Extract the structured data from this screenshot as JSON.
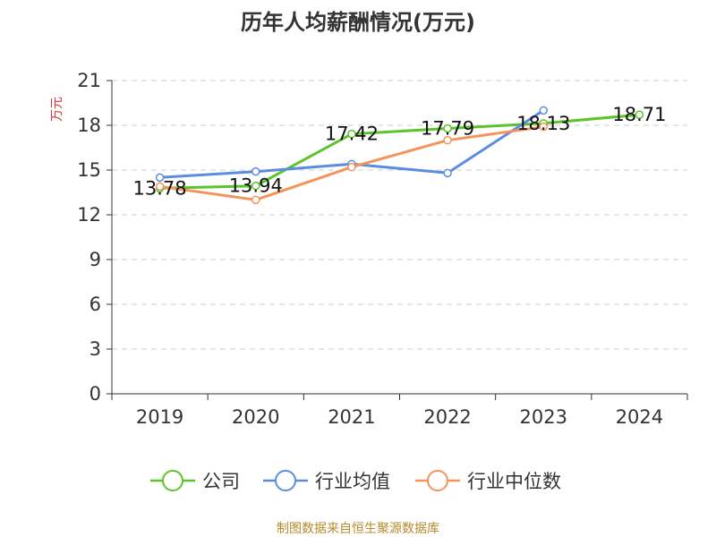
{
  "chart_data": {
    "type": "line",
    "title": "历年人均薪酬情况(万元)",
    "ylabel": "万元",
    "xlabel": "",
    "categories": [
      "2019",
      "2020",
      "2021",
      "2022",
      "2023",
      "2024"
    ],
    "ylim": [
      0,
      21
    ],
    "yticks": [
      0,
      3,
      6,
      9,
      12,
      15,
      18,
      21
    ],
    "grid": true,
    "legend_position": "bottom",
    "series": [
      {
        "name": "公司",
        "color": "#5cc42a",
        "values": [
          13.78,
          13.94,
          17.42,
          17.79,
          18.13,
          18.71
        ],
        "labels": [
          "13.78",
          "13.94",
          "17.42",
          "17.79",
          "18.13",
          "18.71"
        ]
      },
      {
        "name": "行业均值",
        "color": "#5b8ce0",
        "values": [
          14.5,
          14.9,
          15.4,
          14.8,
          19.0,
          null
        ]
      },
      {
        "name": "行业中位数",
        "color": "#f4935a",
        "values": [
          13.9,
          13.0,
          15.2,
          17.0,
          17.9,
          null
        ]
      }
    ]
  },
  "footer": {
    "source": "制图数据来自恒生聚源数据库"
  }
}
